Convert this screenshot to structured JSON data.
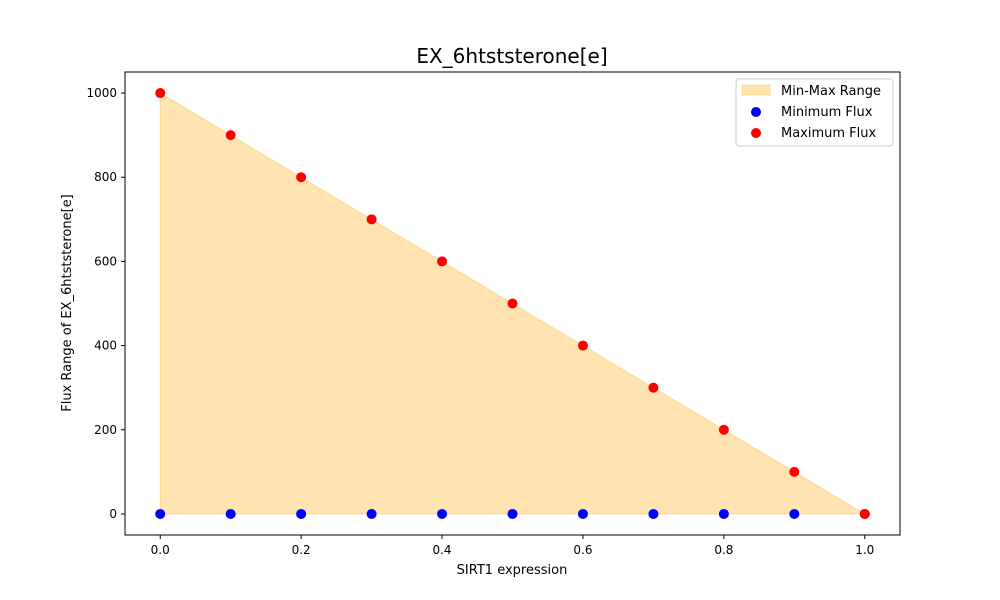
{
  "chart_data": {
    "type": "scatter",
    "title": "EX_6htststerone[e]",
    "xlabel": "SIRT1 expression",
    "ylabel": "Flux Range of EX_6htststerone[e]",
    "x": [
      0.0,
      0.1,
      0.2,
      0.3,
      0.4,
      0.5,
      0.6,
      0.7,
      0.8,
      0.9,
      1.0
    ],
    "series": [
      {
        "name": "Minimum Flux",
        "values": [
          0,
          0,
          0,
          0,
          0,
          0,
          0,
          0,
          0,
          0,
          0
        ],
        "color": "#0000ff"
      },
      {
        "name": "Maximum Flux",
        "values": [
          1000,
          900,
          800,
          700,
          600,
          500,
          400,
          300,
          200,
          100,
          0
        ],
        "color": "#ff0000"
      }
    ],
    "fill": {
      "name": "Min-Max Range",
      "color": "#ffa500",
      "alpha": 0.3
    },
    "xlim": [
      -0.05,
      1.05
    ],
    "ylim": [
      -50,
      1050
    ],
    "xticks": [
      0.0,
      0.2,
      0.4,
      0.6,
      0.8,
      1.0
    ],
    "xtick_labels": [
      "0.0",
      "0.2",
      "0.4",
      "0.6",
      "0.8",
      "1.0"
    ],
    "yticks": [
      0,
      200,
      400,
      600,
      800,
      1000
    ],
    "ytick_labels": [
      "0",
      "200",
      "400",
      "600",
      "800",
      "1000"
    ],
    "grid": false,
    "legend_position": "top-right"
  }
}
